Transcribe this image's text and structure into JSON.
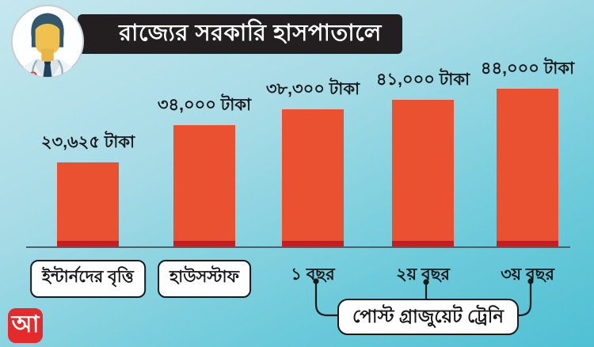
{
  "header": {
    "title": "রাজ্যের সরকারি হাসপাতালে",
    "avatar_icon": "doctor-avatar-icon"
  },
  "chart_data": {
    "type": "bar",
    "title": "রাজ্যের সরকারি হাসপাতালে",
    "unit": "টাকা",
    "ylim": [
      0,
      44000
    ],
    "grid": false,
    "legend": false,
    "bar_color": "#e95130",
    "bar_base_color": "#c41f20",
    "bars": [
      {
        "category": "ইন্টার্নদের বৃত্তি",
        "value": 23625,
        "value_label": "২৩,৬২৫ টাকা",
        "label_style": "box"
      },
      {
        "category": "হাউসস্টাফ",
        "value": 34000,
        "value_label": "৩৪,০০০ টাকা",
        "label_style": "box"
      },
      {
        "category": "১ বছর",
        "value": 38300,
        "value_label": "৩৮,৩০০ টাকা",
        "label_style": "plain",
        "group": "পোস্ট গ্রাজুয়েট ট্রেনি"
      },
      {
        "category": "২য় বছর",
        "value": 41000,
        "value_label": "৪১,০০০ টাকা",
        "label_style": "plain",
        "group": "পোস্ট গ্রাজুয়েট ট্রেনি"
      },
      {
        "category": "৩য় বছর",
        "value": 44000,
        "value_label": "৪৪,০০০ টাকা",
        "label_style": "plain",
        "group": "পোস্ট গ্রাজুয়েট ট্রেনি"
      }
    ],
    "group_label": "পোস্ট গ্রাজুয়েট ট্রেনি"
  },
  "footer": {
    "logo_text": "আ",
    "logo_color": "#e42a2a"
  },
  "colors": {
    "background_top": "#c6e7ee",
    "background_bottom": "#4fc0d3",
    "title_bg": "#231f20",
    "title_text": "#ffffff",
    "baseline": "#48626d"
  }
}
